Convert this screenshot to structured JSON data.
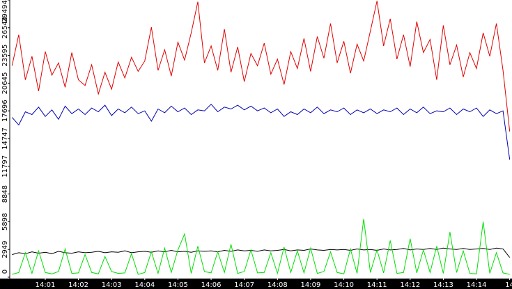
{
  "chart_data": {
    "type": "line",
    "x": [
      0,
      0.2,
      0.4,
      0.6,
      0.8,
      1,
      1.2,
      1.4,
      1.6,
      1.8,
      2,
      2.2,
      2.4,
      2.6,
      2.8,
      3,
      3.2,
      3.4,
      3.6,
      3.8,
      4,
      4.2,
      4.4,
      4.6,
      4.8,
      5,
      5.2,
      5.4,
      5.6,
      5.8,
      6,
      6.2,
      6.4,
      6.6,
      6.8,
      7,
      7.2,
      7.4,
      7.6,
      7.8,
      8,
      8.2,
      8.4,
      8.6,
      8.8,
      9,
      9.2,
      9.4,
      9.6,
      9.8,
      10,
      10.2,
      10.4,
      10.6,
      10.8,
      11,
      11.2,
      11.4,
      11.6,
      11.8,
      12,
      12.2,
      12.4,
      12.6,
      12.8,
      13,
      13.2,
      13.4,
      13.6,
      13.8,
      14,
      14.2,
      14.4,
      14.6,
      14.8,
      15
    ],
    "xlim": [
      -0.07,
      15.07
    ],
    "xticks": [
      {
        "value": 1,
        "label": "14:01"
      },
      {
        "value": 2,
        "label": "14:02"
      },
      {
        "value": 3,
        "label": "14:03"
      },
      {
        "value": 4,
        "label": "14:04"
      },
      {
        "value": 5,
        "label": "14:05"
      },
      {
        "value": 6,
        "label": "14:06"
      },
      {
        "value": 7,
        "label": "14:07"
      },
      {
        "value": 8,
        "label": "14:08"
      },
      {
        "value": 9,
        "label": "14:09"
      },
      {
        "value": 10,
        "label": "14:10"
      },
      {
        "value": 11,
        "label": "14:11"
      },
      {
        "value": 12,
        "label": "14:12"
      },
      {
        "value": 13,
        "label": "14:13"
      },
      {
        "value": 14,
        "label": "14:14"
      },
      {
        "value": 15,
        "label": "14"
      }
    ],
    "ylim": [
      0,
      29494
    ],
    "yticks": [
      0,
      2949,
      5898,
      8848,
      11797,
      14747,
      17696,
      20645,
      23595,
      26544,
      29494
    ],
    "series": [
      {
        "color": "#e00000",
        "values": [
          22500,
          25800,
          21000,
          23500,
          19800,
          24000,
          21500,
          22800,
          20200,
          23900,
          21000,
          20400,
          22600,
          19500,
          21800,
          20000,
          22900,
          21200,
          23400,
          21900,
          23000,
          26600,
          22000,
          24200,
          21400,
          25000,
          23100,
          26000,
          29300,
          22800,
          24600,
          22000,
          26400,
          21800,
          24500,
          20800,
          23800,
          22500,
          24900,
          21600,
          23200,
          20500,
          24000,
          22200,
          25400,
          21900,
          25600,
          23300,
          27000,
          22800,
          25100,
          21700,
          24800,
          23000,
          26200,
          29400,
          24600,
          27500,
          23200,
          25800,
          22400,
          27200,
          23900,
          25300,
          21000,
          26800,
          22600,
          24700,
          21300,
          23900,
          22200,
          26000,
          23500,
          27000,
          22000,
          15500
        ]
      },
      {
        "color": "#0000b0",
        "values": [
          17000,
          16200,
          17600,
          17300,
          18100,
          17100,
          17800,
          16800,
          18200,
          17400,
          17900,
          17300,
          18000,
          17600,
          18300,
          17200,
          17900,
          17500,
          18100,
          17400,
          17700,
          16600,
          17900,
          17500,
          18200,
          17600,
          18000,
          17300,
          17800,
          17700,
          18400,
          17600,
          18100,
          17900,
          18300,
          17800,
          18200,
          17700,
          18000,
          17500,
          17900,
          17100,
          17600,
          17300,
          17900,
          17500,
          18100,
          17400,
          17800,
          17600,
          18000,
          17300,
          17800,
          17500,
          17900,
          17400,
          17800,
          17600,
          18000,
          17300,
          17900,
          17500,
          18100,
          17400,
          17700,
          17600,
          18000,
          17300,
          17900,
          17600,
          18000,
          17100,
          17800,
          17400,
          17700,
          12500
        ]
      },
      {
        "color": "#000000",
        "values": [
          2400,
          2600,
          2500,
          2700,
          2550,
          2650,
          2500,
          2750,
          2600,
          2550,
          2700,
          2600,
          2650,
          2750,
          2600,
          2700,
          2650,
          2800,
          2600,
          2700,
          2750,
          2650,
          2800,
          2700,
          2850,
          2700,
          2750,
          2650,
          2800,
          2750,
          2800,
          2700,
          2850,
          2750,
          2900,
          2800,
          2850,
          2750,
          2900,
          2800,
          2850,
          2950,
          2800,
          2900,
          2850,
          3000,
          2900,
          2850,
          2950,
          2900,
          2950,
          2850,
          3000,
          2900,
          2950,
          2850,
          3000,
          2900,
          2950,
          3050,
          2900,
          3000,
          2950,
          3050,
          2950,
          3100,
          3000,
          2950,
          3050,
          2950,
          3000,
          3050,
          2950,
          3100,
          3000,
          2100
        ]
      },
      {
        "color": "#00e000",
        "values": [
          300,
          500,
          2600,
          400,
          2800,
          500,
          350,
          600,
          3000,
          400,
          450,
          2400,
          500,
          350,
          2200,
          600,
          400,
          450,
          2500,
          300,
          500,
          2700,
          400,
          3100,
          500,
          2900,
          4600,
          400,
          3300,
          600,
          450,
          2700,
          500,
          3500,
          400,
          600,
          2900,
          450,
          500,
          2600,
          400,
          3200,
          500,
          2800,
          450,
          3100,
          400,
          600,
          2700,
          500,
          350,
          3000,
          400,
          6200,
          500,
          2900,
          450,
          3900,
          400,
          500,
          4100,
          450,
          2900,
          500,
          3300,
          400,
          4800,
          500,
          2800,
          400,
          350,
          5900,
          400,
          2600,
          450,
          300
        ]
      }
    ]
  }
}
